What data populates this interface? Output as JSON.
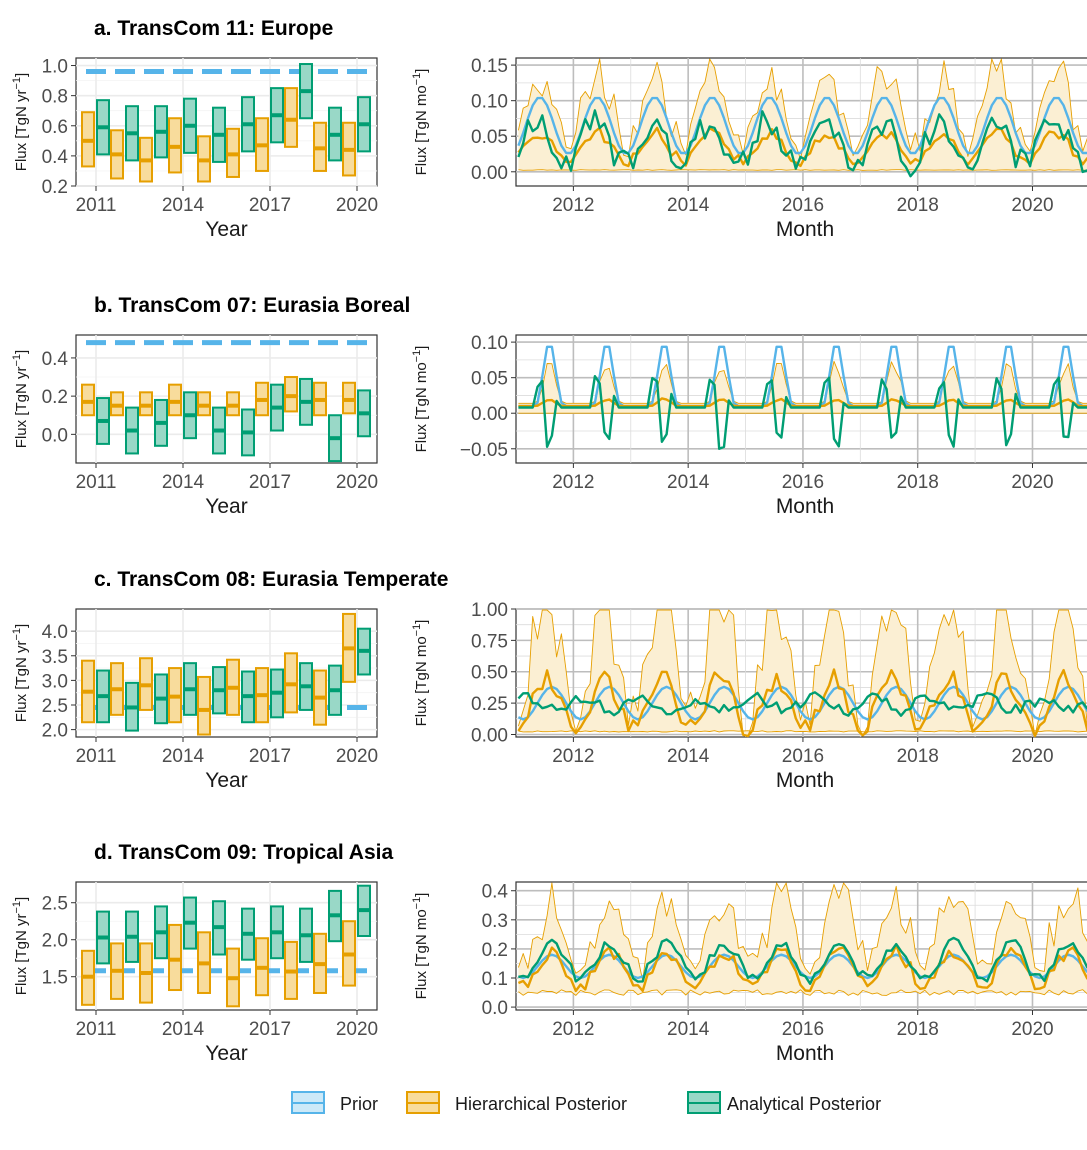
{
  "colors": {
    "prior": "#56B4E9",
    "prior_fill": "#CCE9F8",
    "hier": "#E69F00",
    "hier_fill": "#F8DC9C",
    "hier_band": "#FBEFD3",
    "anal": "#009E73",
    "anal_fill": "#99D8C7"
  },
  "legend": {
    "items": [
      {
        "label": "Prior",
        "key": "prior"
      },
      {
        "label": "Hierarchical Posterior",
        "key": "hier"
      },
      {
        "label": "Analytical Posterior",
        "key": "anal"
      }
    ]
  },
  "labels": {
    "year_axis": "Year",
    "month_axis": "Month",
    "annual_ylabel": "Flux [TgN yr",
    "monthly_ylabel": "Flux [TgN mo",
    "sup": "−1",
    "close": "]"
  },
  "chart_data": [
    {
      "type": "range",
      "title": "a. TransCom 11: Europe",
      "annual": {
        "years": [
          2011,
          2012,
          2013,
          2014,
          2015,
          2016,
          2017,
          2018,
          2019,
          2020
        ],
        "ylim": [
          0.2,
          1.05
        ],
        "yticks": [
          0.2,
          0.4,
          0.6,
          0.8,
          1.0
        ],
        "ytick_labels": [
          "0.2",
          "0.4",
          "0.6",
          "0.8",
          "1.0"
        ],
        "xticks": [
          2011,
          2014,
          2017,
          2020
        ],
        "prior": [
          0.96,
          0.96,
          0.96,
          0.96,
          0.96,
          0.96,
          0.96,
          0.96,
          0.96,
          0.96
        ],
        "hier": {
          "mean": [
            0.5,
            0.41,
            0.37,
            0.46,
            0.37,
            0.41,
            0.47,
            0.64,
            0.45,
            0.44
          ],
          "low": [
            0.33,
            0.25,
            0.23,
            0.29,
            0.23,
            0.26,
            0.3,
            0.46,
            0.3,
            0.27
          ],
          "high": [
            0.69,
            0.57,
            0.52,
            0.65,
            0.53,
            0.58,
            0.65,
            0.85,
            0.62,
            0.62
          ]
        },
        "anal": {
          "mean": [
            0.59,
            0.55,
            0.56,
            0.6,
            0.54,
            0.61,
            0.67,
            0.83,
            0.54,
            0.61
          ],
          "low": [
            0.41,
            0.37,
            0.39,
            0.42,
            0.36,
            0.43,
            0.49,
            0.65,
            0.37,
            0.43
          ],
          "high": [
            0.77,
            0.73,
            0.73,
            0.78,
            0.72,
            0.79,
            0.85,
            1.01,
            0.72,
            0.79
          ]
        }
      },
      "monthly": {
        "ylim": [
          -0.02,
          0.16
        ],
        "yticks": [
          0.0,
          0.05,
          0.1,
          0.15
        ],
        "ytick_labels": [
          "0.00",
          "0.05",
          "0.10",
          "0.15"
        ],
        "xticks": [
          2012,
          2014,
          2016,
          2018,
          2020
        ],
        "prior": {
          "base": 0.065,
          "amp": 0.04,
          "phase": 4.5
        },
        "hier": {
          "base": 0.035,
          "amp": 0.02,
          "phase": 4.5,
          "low": 0.002,
          "high_scale": 2.6
        },
        "anal": {
          "base": 0.04,
          "amp": 0.03,
          "phase": 4.0,
          "noise": 0.02
        }
      }
    },
    {
      "type": "range",
      "title": "b. TransCom 07: Eurasia Boreal",
      "annual": {
        "years": [
          2011,
          2012,
          2013,
          2014,
          2015,
          2016,
          2017,
          2018,
          2019,
          2020
        ],
        "ylim": [
          -0.15,
          0.52
        ],
        "yticks": [
          0.0,
          0.2,
          0.4
        ],
        "ytick_labels": [
          "0.0",
          "0.2",
          "0.4"
        ],
        "xticks": [
          2011,
          2014,
          2017,
          2020
        ],
        "prior": [
          0.48,
          0.48,
          0.48,
          0.48,
          0.48,
          0.48,
          0.48,
          0.48,
          0.48,
          0.48
        ],
        "hier": {
          "mean": [
            0.17,
            0.15,
            0.15,
            0.17,
            0.15,
            0.15,
            0.18,
            0.2,
            0.18,
            0.18
          ],
          "low": [
            0.1,
            0.1,
            0.1,
            0.1,
            0.1,
            0.1,
            0.1,
            0.12,
            0.1,
            0.11
          ],
          "high": [
            0.26,
            0.22,
            0.22,
            0.26,
            0.22,
            0.22,
            0.27,
            0.3,
            0.27,
            0.27
          ]
        },
        "anal": {
          "mean": [
            0.07,
            0.02,
            0.06,
            0.1,
            0.02,
            0.01,
            0.14,
            0.17,
            -0.02,
            0.11
          ],
          "low": [
            -0.05,
            -0.1,
            -0.06,
            -0.02,
            -0.1,
            -0.11,
            0.02,
            0.05,
            -0.14,
            -0.01
          ],
          "high": [
            0.19,
            0.14,
            0.18,
            0.22,
            0.14,
            0.13,
            0.26,
            0.29,
            0.1,
            0.23
          ]
        }
      },
      "monthly": {
        "ylim": [
          -0.07,
          0.11
        ],
        "yticks": [
          -0.05,
          0.0,
          0.05,
          0.1
        ],
        "ytick_labels": [
          "−0.05",
          "0.00",
          "0.05",
          "0.10"
        ],
        "xticks": [
          2012,
          2014,
          2016,
          2018,
          2020
        ],
        "prior_peak": 0.1,
        "prior_base": 0.01,
        "hier": {
          "base": 0.01,
          "peak": 0.02,
          "high_peak": 0.07
        },
        "anal": {
          "base": 0.008,
          "peak": 0.035,
          "dip": -0.05
        }
      }
    },
    {
      "type": "range",
      "title": "c. TransCom 08: Eurasia Temperate",
      "annual": {
        "years": [
          2011,
          2012,
          2013,
          2014,
          2015,
          2016,
          2017,
          2018,
          2019,
          2020
        ],
        "ylim": [
          1.85,
          4.45
        ],
        "yticks": [
          2.0,
          2.5,
          3.0,
          3.5,
          4.0
        ],
        "ytick_labels": [
          "2.0",
          "2.5",
          "3.0",
          "3.5",
          "4.0"
        ],
        "xticks": [
          2011,
          2014,
          2017,
          2020
        ],
        "prior": [
          2.45,
          2.45,
          2.45,
          2.45,
          2.45,
          2.45,
          2.45,
          2.45,
          2.45,
          2.45
        ],
        "hier": {
          "mean": [
            2.77,
            2.82,
            2.9,
            2.67,
            2.4,
            2.85,
            2.7,
            2.92,
            2.65,
            3.65
          ],
          "low": [
            2.15,
            2.3,
            2.4,
            2.15,
            1.9,
            2.3,
            2.15,
            2.35,
            2.1,
            2.97
          ],
          "high": [
            3.4,
            3.35,
            3.45,
            3.25,
            3.07,
            3.42,
            3.25,
            3.55,
            3.2,
            4.35
          ]
        },
        "anal": {
          "mean": [
            2.68,
            2.45,
            2.63,
            2.82,
            2.8,
            2.68,
            2.75,
            2.88,
            2.8,
            3.6
          ],
          "low": [
            2.15,
            1.98,
            2.13,
            2.3,
            2.33,
            2.15,
            2.25,
            2.4,
            2.3,
            3.12
          ],
          "high": [
            3.2,
            2.95,
            3.12,
            3.35,
            3.27,
            3.18,
            3.22,
            3.35,
            3.3,
            4.05
          ]
        }
      },
      "monthly": {
        "ylim": [
          -0.02,
          1.0
        ],
        "yticks": [
          0.0,
          0.25,
          0.5,
          0.75,
          1.0
        ],
        "ytick_labels": [
          "0.00",
          "0.25",
          "0.50",
          "0.75",
          "1.00"
        ],
        "xticks": [
          2012,
          2014,
          2016,
          2018,
          2020
        ],
        "prior": {
          "base": 0.25,
          "amp": 0.13,
          "phase": 7.0
        },
        "hier": {
          "base": 0.25,
          "amp": 0.2,
          "phase": 6.0,
          "low": 0.02,
          "high_scale": 2.5
        },
        "anal": {
          "base": 0.24,
          "amp": 0.05,
          "phase": 2.0,
          "noise": 0.05
        }
      }
    },
    {
      "type": "range",
      "title": "d. TransCom 09: Tropical Asia",
      "annual": {
        "years": [
          2011,
          2012,
          2013,
          2014,
          2015,
          2016,
          2017,
          2018,
          2019,
          2020
        ],
        "ylim": [
          1.05,
          2.78
        ],
        "yticks": [
          1.5,
          2.0,
          2.5
        ],
        "ytick_labels": [
          "1.5",
          "2.0",
          "2.5"
        ],
        "xticks": [
          2011,
          2014,
          2017,
          2020
        ],
        "prior": [
          1.58,
          1.58,
          1.58,
          1.58,
          1.58,
          1.58,
          1.58,
          1.58,
          1.58,
          1.58
        ],
        "hier": {
          "mean": [
            1.5,
            1.58,
            1.55,
            1.73,
            1.68,
            1.48,
            1.62,
            1.57,
            1.67,
            1.8
          ],
          "low": [
            1.12,
            1.2,
            1.15,
            1.32,
            1.28,
            1.1,
            1.25,
            1.2,
            1.28,
            1.38
          ],
          "high": [
            1.85,
            1.95,
            1.95,
            2.2,
            2.1,
            1.88,
            2.02,
            1.97,
            2.08,
            2.25
          ]
        },
        "anal": {
          "mean": [
            2.03,
            2.04,
            2.1,
            2.23,
            2.17,
            2.08,
            2.1,
            2.06,
            2.33,
            2.4
          ],
          "low": [
            1.68,
            1.7,
            1.75,
            1.88,
            1.8,
            1.73,
            1.75,
            1.7,
            1.98,
            2.05
          ],
          "high": [
            2.38,
            2.38,
            2.45,
            2.57,
            2.52,
            2.42,
            2.45,
            2.42,
            2.66,
            2.73
          ]
        }
      },
      "monthly": {
        "ylim": [
          -0.01,
          0.43
        ],
        "yticks": [
          0.0,
          0.1,
          0.2,
          0.3,
          0.4
        ],
        "ytick_labels": [
          "0.0",
          "0.1",
          "0.2",
          "0.3",
          "0.4"
        ],
        "xticks": [
          2012,
          2014,
          2016,
          2018,
          2020
        ],
        "prior": {
          "base": 0.14,
          "amp": 0.04,
          "phase": 7.0
        },
        "hier": {
          "base": 0.13,
          "amp": 0.06,
          "phase": 7.0,
          "low": 0.04,
          "high_scale": 2.0
        },
        "anal": {
          "base": 0.16,
          "amp": 0.06,
          "phase": 7.0,
          "noise": 0.02
        }
      }
    }
  ]
}
